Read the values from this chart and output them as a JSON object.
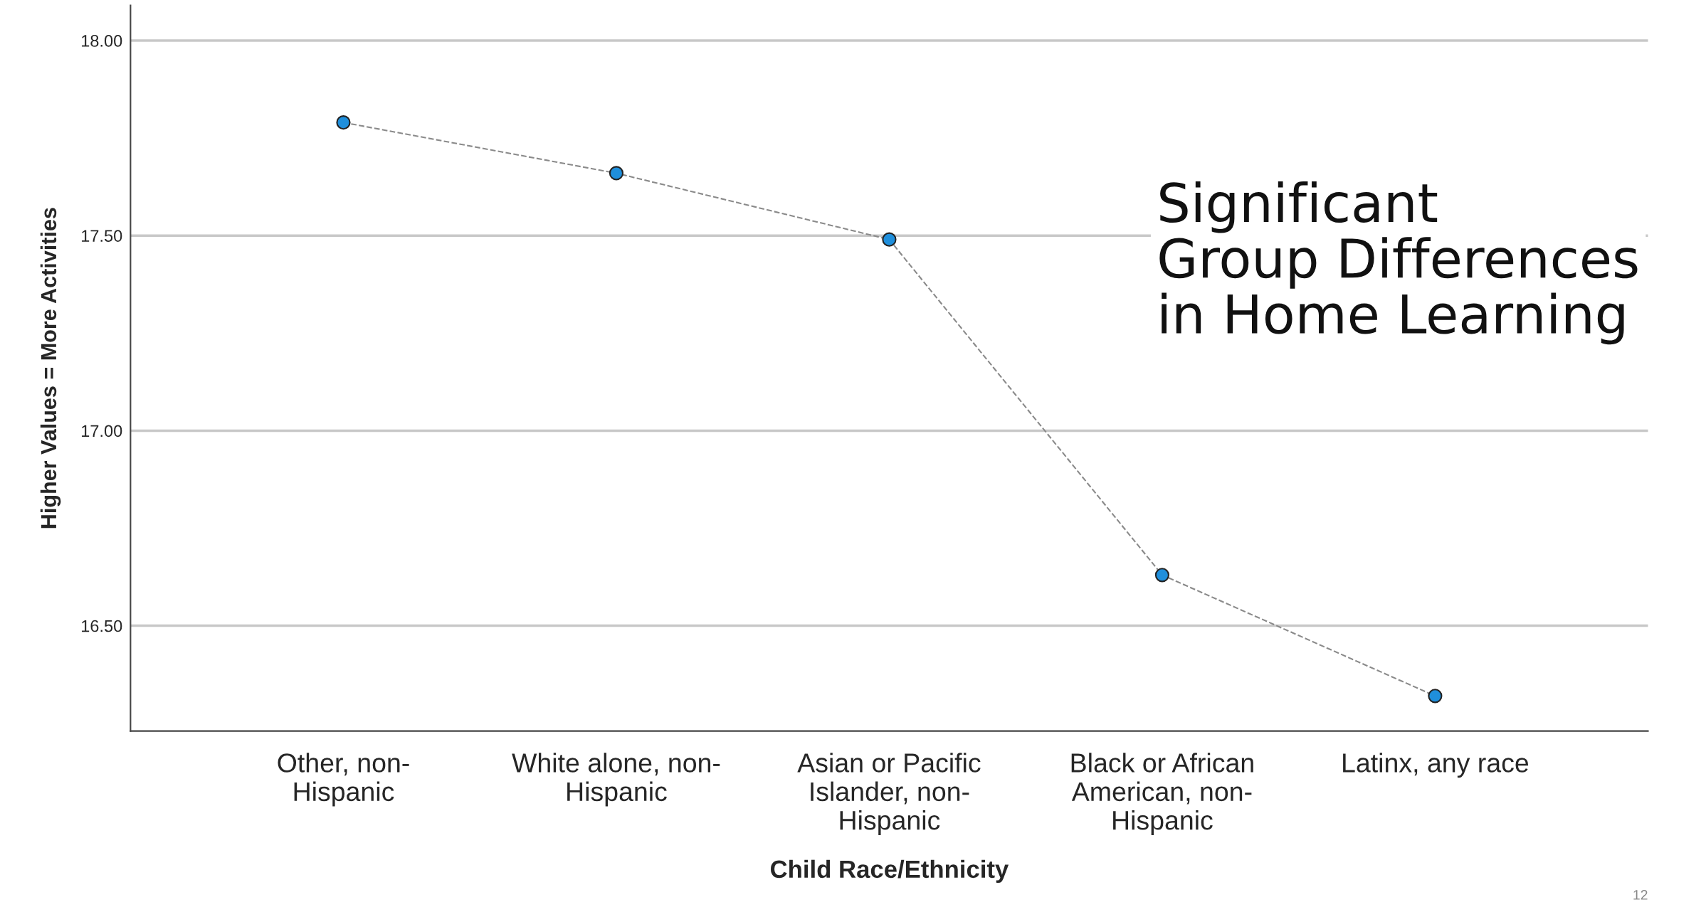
{
  "chart_data": {
    "type": "line",
    "xlabel": "Child Race/Ethnicity",
    "ylabel": "Higher Values = More Activities",
    "categories": [
      "Other, non-\nHispanic",
      "White alone, non-\nHispanic",
      "Asian or Pacific\nIslander, non-\nHispanic",
      "Black or African\nAmerican, non-\nHispanic",
      "Latinx, any race"
    ],
    "series": [
      {
        "color": "#1f8fdc",
        "values": [
          17.79,
          17.66,
          17.49,
          16.63,
          16.32
        ]
      }
    ],
    "ylim": [
      16.23,
      18.09
    ],
    "yticks": [
      {
        "value": 16.5,
        "label": "16.50"
      },
      {
        "value": 17,
        "label": "17.00"
      },
      {
        "value": 17.5,
        "label": "17.50"
      },
      {
        "value": 18,
        "label": "18.00"
      }
    ],
    "grid": "y",
    "marker": "circle",
    "line_style": "dashed",
    "legend": false,
    "annotations": [
      "Significant\nGroup Differences\nin Home Learning",
      "12"
    ]
  }
}
